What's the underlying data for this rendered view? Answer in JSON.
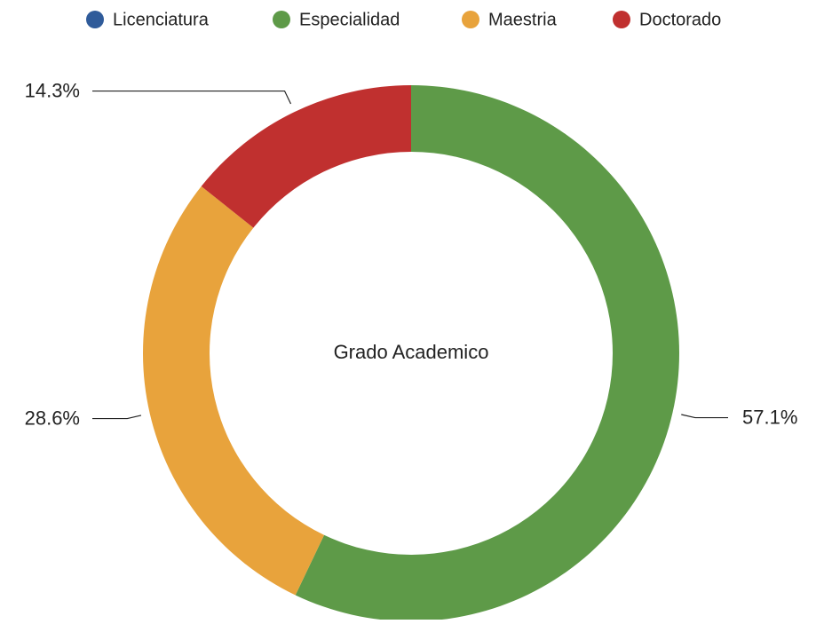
{
  "chart_data": {
    "type": "donut",
    "title": "Grado Academico",
    "categories": [
      "Licenciatura",
      "Especialidad",
      "Maestria",
      "Doctorado"
    ],
    "values": [
      0,
      57.1,
      28.6,
      14.3
    ],
    "value_labels": [
      null,
      "57.1%",
      "28.6%",
      "14.3%"
    ],
    "colors": [
      "#2f5b9a",
      "#5e9a48",
      "#e8a33c",
      "#c0302f"
    ],
    "legend": "top"
  }
}
